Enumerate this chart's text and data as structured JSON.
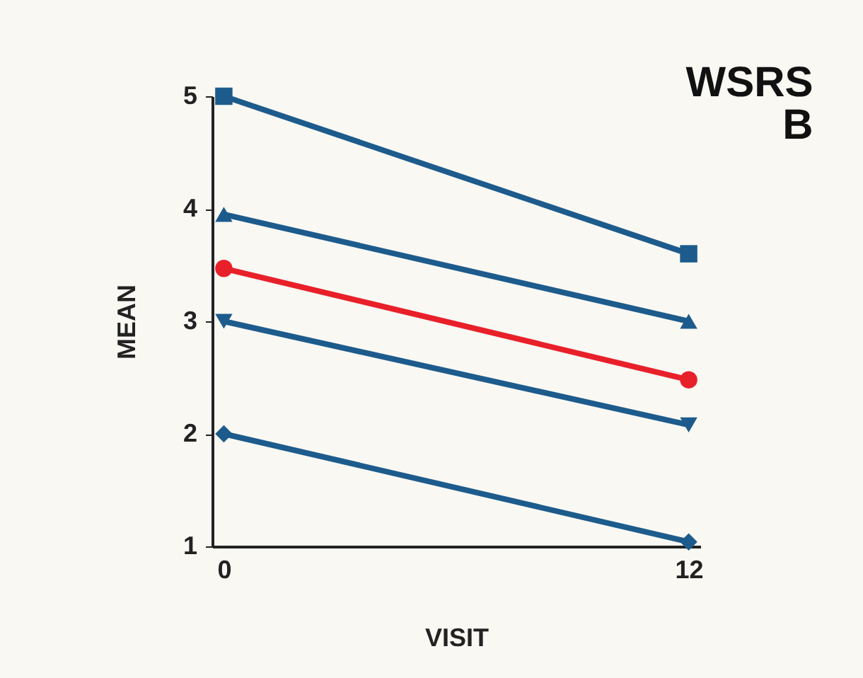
{
  "chart_data": {
    "type": "line",
    "title": "WSRS B",
    "xlabel": "VISIT",
    "ylabel": "MEAN",
    "x": [
      0,
      12
    ],
    "xlim": [
      -0.3,
      12.3
    ],
    "xticks": [
      0,
      12
    ],
    "ylim": [
      1,
      5
    ],
    "yticks": [
      1,
      2,
      3,
      4,
      5
    ],
    "grid": false,
    "series": [
      {
        "color": "#1d5b8c",
        "marker": "square",
        "values": [
          5.0,
          3.6
        ]
      },
      {
        "color": "#1d5b8c",
        "marker": "triangle",
        "values": [
          3.95,
          3.0
        ]
      },
      {
        "color": "#e8202a",
        "marker": "circle",
        "values": [
          3.47,
          2.48
        ]
      },
      {
        "color": "#1d5b8c",
        "marker": "triangle-down",
        "values": [
          3.0,
          2.08
        ]
      },
      {
        "color": "#1d5b8c",
        "marker": "diamond",
        "values": [
          2.0,
          1.04
        ]
      }
    ]
  }
}
